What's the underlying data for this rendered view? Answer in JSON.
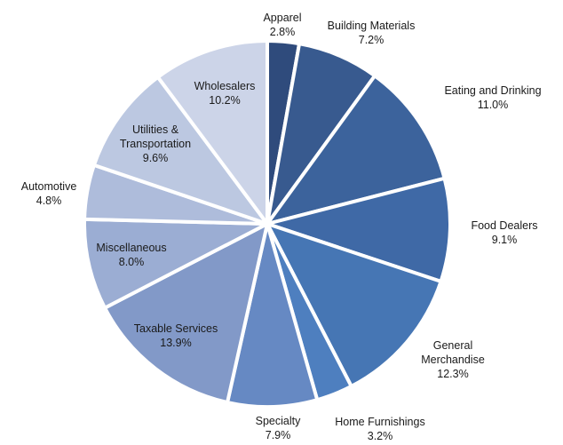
{
  "chart_data": {
    "type": "pie",
    "categories": [
      "Apparel",
      "Building Materials",
      "Eating and Drinking",
      "Food Dealers",
      "General Merchandise",
      "Home Furnishings",
      "Specialty",
      "Taxable Services",
      "Miscellaneous",
      "Automotive",
      "Utilities & Transportation",
      "Wholesalers"
    ],
    "values": [
      2.8,
      7.2,
      11.0,
      9.1,
      12.3,
      3.2,
      7.9,
      13.9,
      8.0,
      4.8,
      9.6,
      10.2
    ],
    "value_labels": [
      "2.8%",
      "7.2%",
      "11.0%",
      "9.1%",
      "12.3%",
      "3.2%",
      "7.9%",
      "13.9%",
      "8.0%",
      "4.8%",
      "9.6%",
      "10.2%"
    ],
    "colors": [
      "#2f4b7c",
      "#385a8f",
      "#3c639c",
      "#3f69a6",
      "#4676b4",
      "#4e7fbf",
      "#6689c3",
      "#8299c8",
      "#9badd3",
      "#aebcdb",
      "#bcc8e1",
      "#ccd4e8"
    ]
  }
}
